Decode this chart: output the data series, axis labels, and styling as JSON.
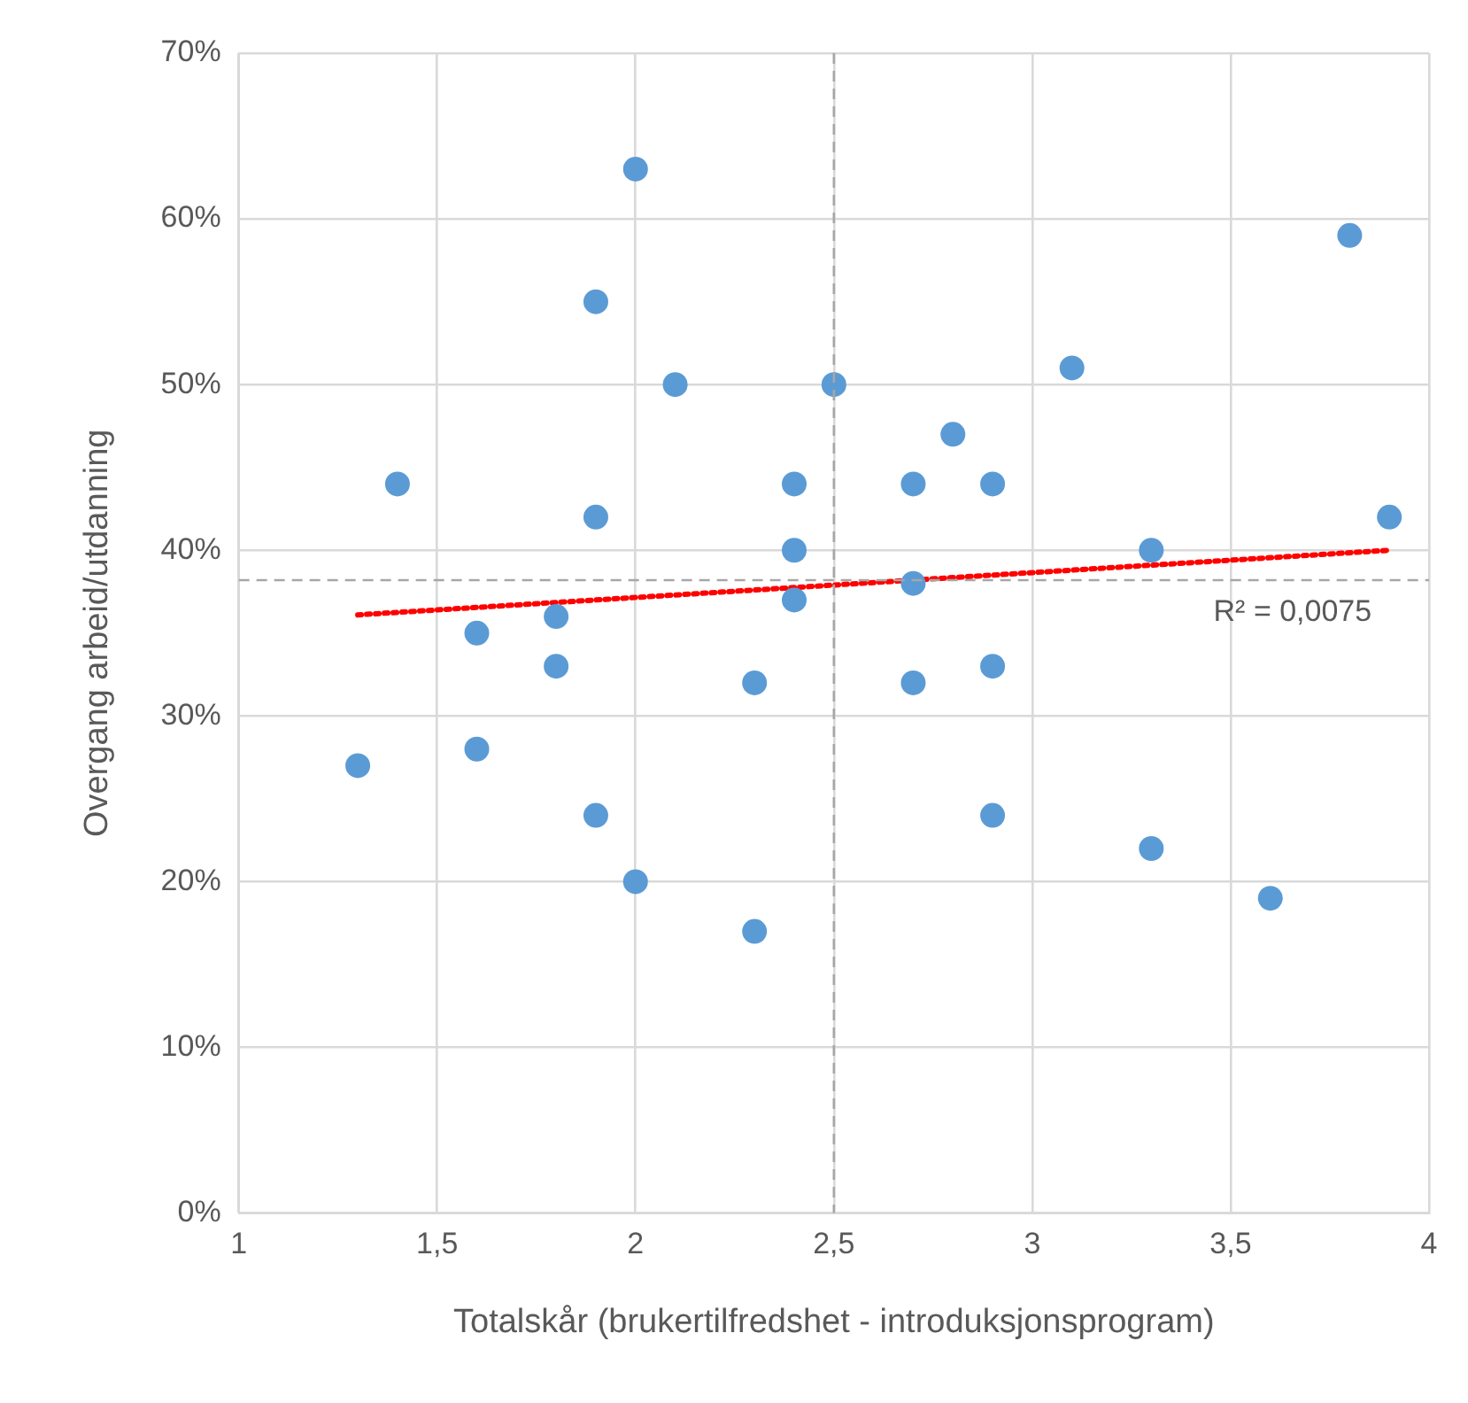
{
  "chart_data": {
    "type": "scatter",
    "xlabel": "Totalskår (brukertilfredshet - introduksjonsprogram)",
    "ylabel": "Overgang arbeid/utdanning",
    "xlim": [
      1,
      4
    ],
    "xticks": [
      1,
      {
        "value": 1.5,
        "label": "1,5"
      },
      2,
      {
        "value": 2.5,
        "label": "2,5"
      },
      3,
      {
        "value": 3.5,
        "label": "3,5"
      },
      4
    ],
    "ylim": [
      0,
      70
    ],
    "yticks": [
      {
        "value": 0,
        "label": "0%"
      },
      {
        "value": 10,
        "label": "10%"
      },
      {
        "value": 20,
        "label": "20%"
      },
      {
        "value": 30,
        "label": "30%"
      },
      {
        "value": 40,
        "label": "40%"
      },
      {
        "value": 50,
        "label": "50%"
      },
      {
        "value": 60,
        "label": "60%"
      },
      {
        "value": 70,
        "label": "70%"
      }
    ],
    "grid": true,
    "legend": false,
    "marker": "circle",
    "series": [
      {
        "type": "scatter",
        "color": "#5b9bd5",
        "x": [
          2.0,
          3.8,
          1.9,
          2.1,
          2.5,
          3.1,
          2.8,
          1.4,
          2.4,
          2.7,
          2.9,
          1.9,
          3.9,
          2.4,
          3.3,
          2.7,
          2.4,
          1.8,
          1.6,
          1.8,
          2.9,
          2.3,
          2.7,
          1.6,
          1.3,
          1.9,
          2.9,
          3.3,
          2.0,
          3.6,
          2.3
        ],
        "values": [
          63,
          59,
          55,
          50,
          50,
          51,
          47,
          44,
          44,
          44,
          44,
          42,
          42,
          40,
          40,
          38,
          37,
          36,
          35,
          33,
          33,
          32,
          32,
          28,
          27,
          24,
          24,
          22,
          20,
          19,
          17
        ]
      },
      {
        "type": "line",
        "color": "#ff0000",
        "line_style": "dotted",
        "marker": "none",
        "x": [
          1.3,
          3.9
        ],
        "values": [
          36.1,
          40.0
        ]
      }
    ],
    "ref_lines": [
      {
        "axis": "x",
        "value": 2.5,
        "color": "#a6a6a6",
        "line_style": "dashed"
      },
      {
        "axis": "y",
        "value": 38.2,
        "color": "#a6a6a6",
        "line_style": "dashed"
      }
    ],
    "annotations": [
      "R² = 0,0075"
    ]
  }
}
